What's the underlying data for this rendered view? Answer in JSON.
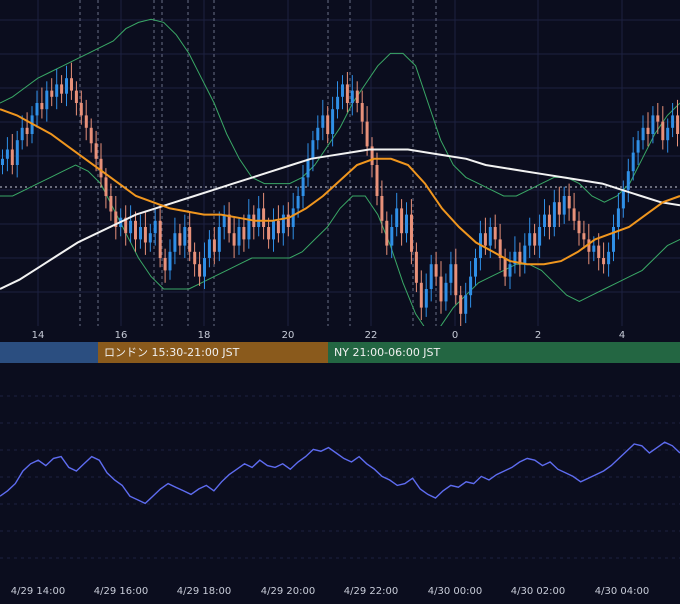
{
  "colors": {
    "background": "#0b0d1e",
    "grid": "#1d2140",
    "candle_up": "#2f8fe6",
    "candle_down": "#e8917a",
    "bollinger": "#3aa866",
    "ma_fast": "#f0961e",
    "ma_slow": "#f2f2f2",
    "oscillator": "#5e6cf0",
    "session_tokyo": "#2b4e80",
    "session_london": "#8a5a1c",
    "session_ny": "#236642"
  },
  "sessions": [
    {
      "label": ""
    },
    {
      "label": "ロンドン 15:30-21:00 JST"
    },
    {
      "label": "NY 21:00-06:00 JST"
    }
  ],
  "chart_data": [
    {
      "type": "candlestick",
      "x_tick_labels": [
        "14",
        "16",
        "18",
        "20",
        "22",
        "0",
        "2",
        "4"
      ],
      "series": [
        {
          "kind": "candles",
          "close": [
            0.52,
            0.55,
            0.5,
            0.58,
            0.62,
            0.6,
            0.66,
            0.7,
            0.68,
            0.74,
            0.72,
            0.76,
            0.73,
            0.78,
            0.74,
            0.7,
            0.66,
            0.62,
            0.57,
            0.52,
            0.46,
            0.4,
            0.35,
            0.3,
            0.33,
            0.28,
            0.32,
            0.26,
            0.3,
            0.25,
            0.28,
            0.32,
            0.2,
            0.16,
            0.22,
            0.28,
            0.24,
            0.3,
            0.22,
            0.18,
            0.14,
            0.2,
            0.26,
            0.22,
            0.3,
            0.34,
            0.28,
            0.24,
            0.3,
            0.26,
            0.34,
            0.3,
            0.36,
            0.3,
            0.26,
            0.32,
            0.28,
            0.34,
            0.3,
            0.36,
            0.4,
            0.46,
            0.52,
            0.58,
            0.62,
            0.66,
            0.6,
            0.68,
            0.72,
            0.76,
            0.7,
            0.74,
            0.7,
            0.64,
            0.56,
            0.5,
            0.4,
            0.32,
            0.24,
            0.3,
            0.36,
            0.28,
            0.34,
            0.22,
            0.12,
            0.04,
            0.1,
            0.18,
            0.14,
            0.06,
            0.12,
            0.18,
            0.08,
            0.02,
            0.08,
            0.14,
            0.2,
            0.28,
            0.24,
            0.3,
            0.26,
            0.2,
            0.14,
            0.18,
            0.22,
            0.18,
            0.24,
            0.28,
            0.24,
            0.3,
            0.34,
            0.3,
            0.38,
            0.34,
            0.4,
            0.36,
            0.32,
            0.28,
            0.26,
            0.22,
            0.24,
            0.2,
            0.18,
            0.22,
            0.3,
            0.36,
            0.42,
            0.48,
            0.54,
            0.58,
            0.62,
            0.6,
            0.66,
            0.64,
            0.58,
            0.62,
            0.66,
            0.6
          ]
        },
        {
          "kind": "bollinger_upper",
          "values": [
            0.7,
            0.72,
            0.75,
            0.78,
            0.8,
            0.82,
            0.84,
            0.86,
            0.88,
            0.9,
            0.94,
            0.96,
            0.97,
            0.96,
            0.92,
            0.86,
            0.78,
            0.7,
            0.6,
            0.52,
            0.46,
            0.44,
            0.44,
            0.44,
            0.46,
            0.5,
            0.56,
            0.62,
            0.7,
            0.76,
            0.82,
            0.86,
            0.86,
            0.82,
            0.7,
            0.58,
            0.5,
            0.46,
            0.44,
            0.42,
            0.4,
            0.4,
            0.42,
            0.44,
            0.46,
            0.46,
            0.44,
            0.4,
            0.38,
            0.4,
            0.44,
            0.52,
            0.6,
            0.66,
            0.7
          ]
        },
        {
          "kind": "bollinger_lower",
          "values": [
            0.4,
            0.4,
            0.42,
            0.44,
            0.46,
            0.48,
            0.5,
            0.48,
            0.44,
            0.36,
            0.28,
            0.2,
            0.14,
            0.1,
            0.1,
            0.1,
            0.12,
            0.14,
            0.16,
            0.18,
            0.2,
            0.2,
            0.2,
            0.2,
            0.22,
            0.26,
            0.3,
            0.36,
            0.4,
            0.4,
            0.34,
            0.24,
            0.12,
            0.02,
            -0.04,
            -0.02,
            0.04,
            0.08,
            0.12,
            0.14,
            0.16,
            0.18,
            0.18,
            0.16,
            0.12,
            0.08,
            0.06,
            0.08,
            0.1,
            0.12,
            0.14,
            0.16,
            0.2,
            0.24,
            0.26
          ]
        },
        {
          "kind": "ma_fast",
          "values": [
            0.68,
            0.66,
            0.63,
            0.6,
            0.56,
            0.52,
            0.48,
            0.44,
            0.4,
            0.38,
            0.36,
            0.35,
            0.34,
            0.34,
            0.33,
            0.32,
            0.32,
            0.33,
            0.36,
            0.4,
            0.45,
            0.5,
            0.52,
            0.52,
            0.5,
            0.44,
            0.36,
            0.3,
            0.25,
            0.22,
            0.19,
            0.18,
            0.18,
            0.19,
            0.22,
            0.26,
            0.28,
            0.3,
            0.34,
            0.38,
            0.4
          ]
        },
        {
          "kind": "ma_slow",
          "values": [
            0.1,
            0.13,
            0.17,
            0.21,
            0.25,
            0.28,
            0.31,
            0.34,
            0.36,
            0.38,
            0.4,
            0.42,
            0.44,
            0.46,
            0.48,
            0.5,
            0.52,
            0.53,
            0.54,
            0.55,
            0.55,
            0.55,
            0.54,
            0.53,
            0.52,
            0.5,
            0.49,
            0.48,
            0.47,
            0.46,
            0.45,
            0.44,
            0.42,
            0.4,
            0.38,
            0.37
          ]
        }
      ]
    },
    {
      "type": "line",
      "x_tick_labels": [
        "4/29 14:00",
        "4/29 16:00",
        "4/29 18:00",
        "4/29 20:00",
        "4/29 22:00",
        "4/30 00:00",
        "4/30 02:00",
        "4/30 04:00"
      ],
      "values": [
        0.22,
        0.28,
        0.36,
        0.5,
        0.58,
        0.62,
        0.56,
        0.64,
        0.66,
        0.54,
        0.5,
        0.58,
        0.66,
        0.62,
        0.48,
        0.4,
        0.34,
        0.22,
        0.18,
        0.14,
        0.22,
        0.3,
        0.36,
        0.32,
        0.28,
        0.24,
        0.3,
        0.34,
        0.28,
        0.38,
        0.46,
        0.52,
        0.58,
        0.54,
        0.62,
        0.56,
        0.54,
        0.58,
        0.52,
        0.6,
        0.66,
        0.74,
        0.72,
        0.76,
        0.7,
        0.64,
        0.6,
        0.66,
        0.58,
        0.52,
        0.44,
        0.4,
        0.34,
        0.36,
        0.42,
        0.3,
        0.24,
        0.2,
        0.28,
        0.34,
        0.32,
        0.38,
        0.36,
        0.44,
        0.4,
        0.46,
        0.5,
        0.54,
        0.6,
        0.64,
        0.62,
        0.56,
        0.6,
        0.52,
        0.48,
        0.44,
        0.38,
        0.42,
        0.46,
        0.5,
        0.56,
        0.64,
        0.72,
        0.8,
        0.78,
        0.7,
        0.76,
        0.82,
        0.78,
        0.7
      ]
    }
  ]
}
